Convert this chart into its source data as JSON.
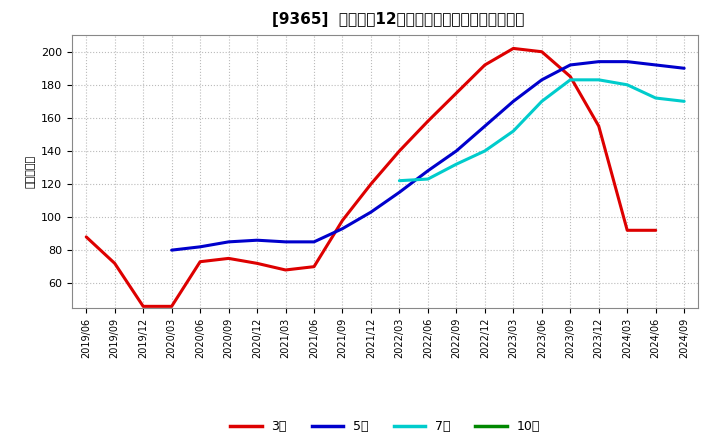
{
  "title": "[9365]  経常利益12か月移動合計の標準偏差の推移",
  "ylabel": "（百万円）",
  "background_color": "#ffffff",
  "plot_bg_color": "#ffffff",
  "grid_color": "#bbbbbb",
  "ylim": [
    45,
    210
  ],
  "yticks": [
    60,
    80,
    100,
    120,
    140,
    160,
    180,
    200
  ],
  "series": {
    "3年": {
      "color": "#dd0000",
      "data": [
        [
          "2019/06",
          88
        ],
        [
          "2019/09",
          72
        ],
        [
          "2019/12",
          46
        ],
        [
          "2020/03",
          46
        ],
        [
          "2020/06",
          73
        ],
        [
          "2020/09",
          75
        ],
        [
          "2020/12",
          72
        ],
        [
          "2021/03",
          68
        ],
        [
          "2021/06",
          70
        ],
        [
          "2021/09",
          98
        ],
        [
          "2021/12",
          120
        ],
        [
          "2022/03",
          140
        ],
        [
          "2022/06",
          158
        ],
        [
          "2022/09",
          175
        ],
        [
          "2022/12",
          192
        ],
        [
          "2023/03",
          202
        ],
        [
          "2023/06",
          200
        ],
        [
          "2023/09",
          185
        ],
        [
          "2023/12",
          155
        ],
        [
          "2024/03",
          92
        ],
        [
          "2024/06",
          92
        ],
        [
          "2024/09",
          null
        ]
      ]
    },
    "5年": {
      "color": "#0000cc",
      "data": [
        [
          "2019/06",
          null
        ],
        [
          "2019/09",
          null
        ],
        [
          "2019/12",
          null
        ],
        [
          "2020/03",
          80
        ],
        [
          "2020/06",
          82
        ],
        [
          "2020/09",
          85
        ],
        [
          "2020/12",
          86
        ],
        [
          "2021/03",
          85
        ],
        [
          "2021/06",
          85
        ],
        [
          "2021/09",
          93
        ],
        [
          "2021/12",
          103
        ],
        [
          "2022/03",
          115
        ],
        [
          "2022/06",
          128
        ],
        [
          "2022/09",
          140
        ],
        [
          "2022/12",
          155
        ],
        [
          "2023/03",
          170
        ],
        [
          "2023/06",
          183
        ],
        [
          "2023/09",
          192
        ],
        [
          "2023/12",
          194
        ],
        [
          "2024/03",
          194
        ],
        [
          "2024/06",
          192
        ],
        [
          "2024/09",
          190
        ]
      ]
    },
    "7年": {
      "color": "#00cccc",
      "data": [
        [
          "2019/06",
          null
        ],
        [
          "2019/09",
          null
        ],
        [
          "2019/12",
          null
        ],
        [
          "2020/03",
          null
        ],
        [
          "2020/06",
          null
        ],
        [
          "2020/09",
          null
        ],
        [
          "2020/12",
          null
        ],
        [
          "2021/03",
          null
        ],
        [
          "2021/06",
          null
        ],
        [
          "2021/09",
          null
        ],
        [
          "2021/12",
          null
        ],
        [
          "2022/03",
          122
        ],
        [
          "2022/06",
          123
        ],
        [
          "2022/09",
          132
        ],
        [
          "2022/12",
          140
        ],
        [
          "2023/03",
          152
        ],
        [
          "2023/06",
          170
        ],
        [
          "2023/09",
          183
        ],
        [
          "2023/12",
          183
        ],
        [
          "2024/03",
          180
        ],
        [
          "2024/06",
          172
        ],
        [
          "2024/09",
          170
        ]
      ]
    },
    "10年": {
      "color": "#008800",
      "data": [
        [
          "2019/06",
          null
        ],
        [
          "2019/09",
          null
        ],
        [
          "2019/12",
          null
        ],
        [
          "2020/03",
          null
        ],
        [
          "2020/06",
          null
        ],
        [
          "2020/09",
          null
        ],
        [
          "2020/12",
          null
        ],
        [
          "2021/03",
          null
        ],
        [
          "2021/06",
          null
        ],
        [
          "2021/09",
          null
        ],
        [
          "2021/12",
          null
        ],
        [
          "2022/03",
          null
        ],
        [
          "2022/06",
          null
        ],
        [
          "2022/09",
          null
        ],
        [
          "2022/12",
          null
        ],
        [
          "2023/03",
          null
        ],
        [
          "2023/06",
          null
        ],
        [
          "2023/09",
          null
        ],
        [
          "2023/12",
          null
        ],
        [
          "2024/03",
          null
        ],
        [
          "2024/06",
          null
        ],
        [
          "2024/09",
          null
        ]
      ]
    }
  },
  "xtick_labels": [
    "2019/06",
    "2019/09",
    "2019/12",
    "2020/03",
    "2020/06",
    "2020/09",
    "2020/12",
    "2021/03",
    "2021/06",
    "2021/09",
    "2021/12",
    "2022/03",
    "2022/06",
    "2022/09",
    "2022/12",
    "2023/03",
    "2023/06",
    "2023/09",
    "2023/12",
    "2024/03",
    "2024/06",
    "2024/09"
  ],
  "legend_labels": [
    "3年",
    "5年",
    "7年",
    "10年"
  ],
  "legend_colors": [
    "#dd0000",
    "#0000cc",
    "#00cccc",
    "#008800"
  ]
}
